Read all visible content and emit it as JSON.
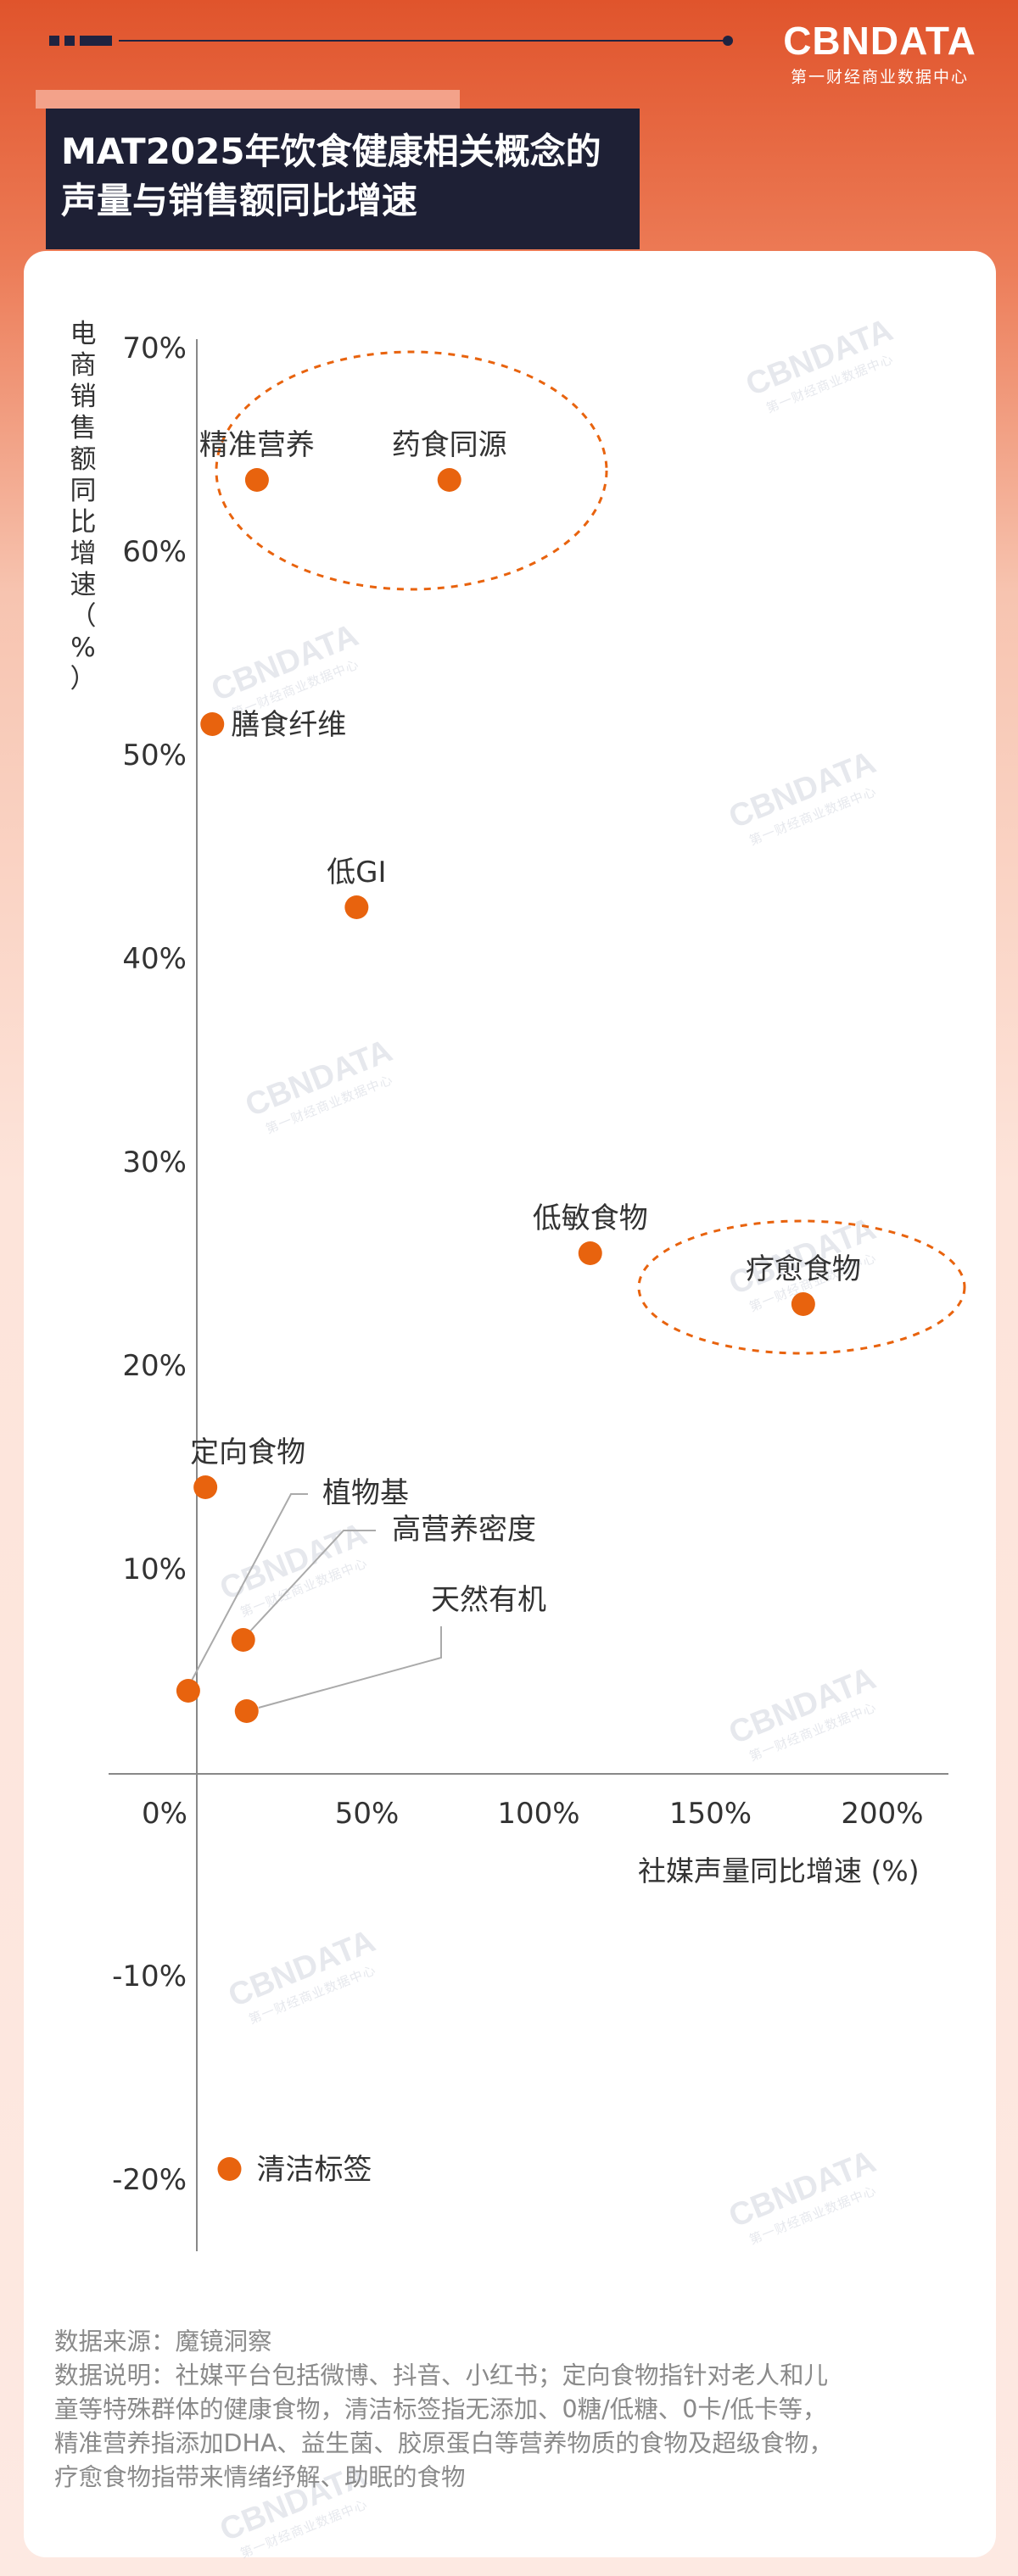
{
  "header": {
    "logo": "CBNDATA",
    "logo_sub": "第一财经商业数据中心",
    "title_line1": "MAT2025年饮食健康相关概念的",
    "title_line2": "声量与销售额同比增速"
  },
  "chart_data": {
    "type": "scatter",
    "title": "MAT2025年饮食健康相关概念的声量与销售额同比增速",
    "xlabel": "社媒声量同比增速 (%)",
    "ylabel": "电商销售额同比增速（%）",
    "xlim": [
      -20,
      200
    ],
    "ylim": [
      -25,
      72
    ],
    "x_ticks": [
      0,
      50,
      100,
      150,
      200
    ],
    "x_tick_labels": [
      "0%",
      "50%",
      "100%",
      "150%",
      "200%"
    ],
    "y_ticks": [
      70,
      60,
      50,
      40,
      30,
      20,
      10,
      -10,
      -20
    ],
    "y_tick_labels": [
      "70%",
      "60%",
      "50%",
      "40%",
      "30%",
      "20%",
      "10%",
      "-10%",
      "-20%"
    ],
    "points": [
      {
        "label": "精准营养",
        "x": 18,
        "y": 63.5
      },
      {
        "label": "药食同源",
        "x": 74,
        "y": 63.5
      },
      {
        "label": "膳食纤维",
        "x": 5,
        "y": 51.5
      },
      {
        "label": "低GI",
        "x": 47,
        "y": 42.5
      },
      {
        "label": "低敏食物",
        "x": 115,
        "y": 25.5
      },
      {
        "label": "疗愈食物",
        "x": 177,
        "y": 23
      },
      {
        "label": "定向食物",
        "x": 3,
        "y": 14
      },
      {
        "label": "植物基",
        "x": -2,
        "y": 4
      },
      {
        "label": "高营养密度",
        "x": 14,
        "y": 6.5
      },
      {
        "label": "天然有机",
        "x": 15,
        "y": 3
      },
      {
        "label": "清洁标签",
        "x": 10,
        "y": -19.5
      }
    ],
    "highlight_groups": [
      [
        "精准营养",
        "药食同源"
      ],
      [
        "疗愈食物"
      ]
    ],
    "point_color": "#e8630e",
    "legend": "none",
    "grid": false
  },
  "footnote": {
    "source": "数据来源：魔镜洞察",
    "note_line1": "数据说明：社媒平台包括微博、抖音、小红书；定向食物指针对老人和儿",
    "note_line2": "童等特殊群体的健康食物，清洁标签指无添加、0糖/低糖、0卡/低卡等，",
    "note_line3": "精准营养指添加DHA、益生菌、胶原蛋白等营养物质的食物及超级食物，",
    "note_line4": "疗愈食物指带来情绪纾解、助眠的食物"
  },
  "colors": {
    "accent": "#e8630e",
    "header_bg": "#e0542c",
    "title_bg": "#1e2035"
  }
}
